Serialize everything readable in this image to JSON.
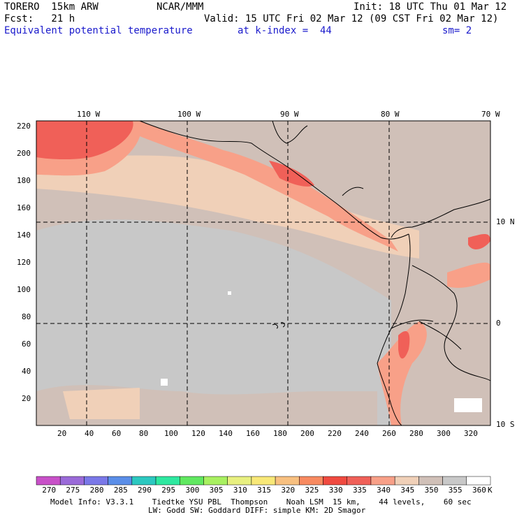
{
  "header": {
    "line1_left": "TORERO  15km ARW",
    "line1_center": "NCAR/MMM",
    "line1_right": "Init: 18 UTC Thu 01 Mar 12",
    "line2_left": "Fcst:   21 h",
    "line2_right": "Valid: 15 UTC Fri 02 Mar 12 (09 CST Fri 02 Mar 12)",
    "line3_field": "Equivalent potential temperature",
    "line3_level": "at k-index =  44",
    "line3_sm": "sm= 2"
  },
  "map": {
    "lon_labels": [
      "110 W",
      "100 W",
      "90 W",
      "80 W",
      "70 W"
    ],
    "lat_labels": [
      "10 N",
      "0",
      "10 S"
    ],
    "y_ticks": [
      "220",
      "200",
      "180",
      "160",
      "140",
      "120",
      "100",
      "80",
      "60",
      "40",
      "20"
    ],
    "x_ticks": [
      "20",
      "40",
      "60",
      "80",
      "100",
      "120",
      "140",
      "160",
      "180",
      "200",
      "220",
      "240",
      "260",
      "280",
      "300",
      "320"
    ]
  },
  "colorbar": {
    "values": [
      "270",
      "275",
      "280",
      "285",
      "290",
      "295",
      "300",
      "305",
      "310",
      "315",
      "320",
      "325",
      "330",
      "335",
      "340",
      "345",
      "350",
      "355",
      "360"
    ],
    "unit": "K",
    "colors": [
      "#c850c8",
      "#9a6ad8",
      "#7a78e8",
      "#5a8ee8",
      "#2cc8c0",
      "#2ee8a0",
      "#60e860",
      "#a8f060",
      "#e8f080",
      "#f8e878",
      "#f8c080",
      "#f88a60",
      "#f04a40",
      "#f06058",
      "#f8a088",
      "#f0d0b8",
      "#d0c0b8",
      "#c8c8c8",
      "#ffffff"
    ]
  },
  "footer": {
    "line1": "Model Info: V3.3.1    Tiedtke YSU PBL  Thompson    Noah LSM  15 km,    44 levels,    60 sec",
    "line2": "LW: Godd SW: Goddard DIFF: simple KM: 2D Smagor"
  }
}
